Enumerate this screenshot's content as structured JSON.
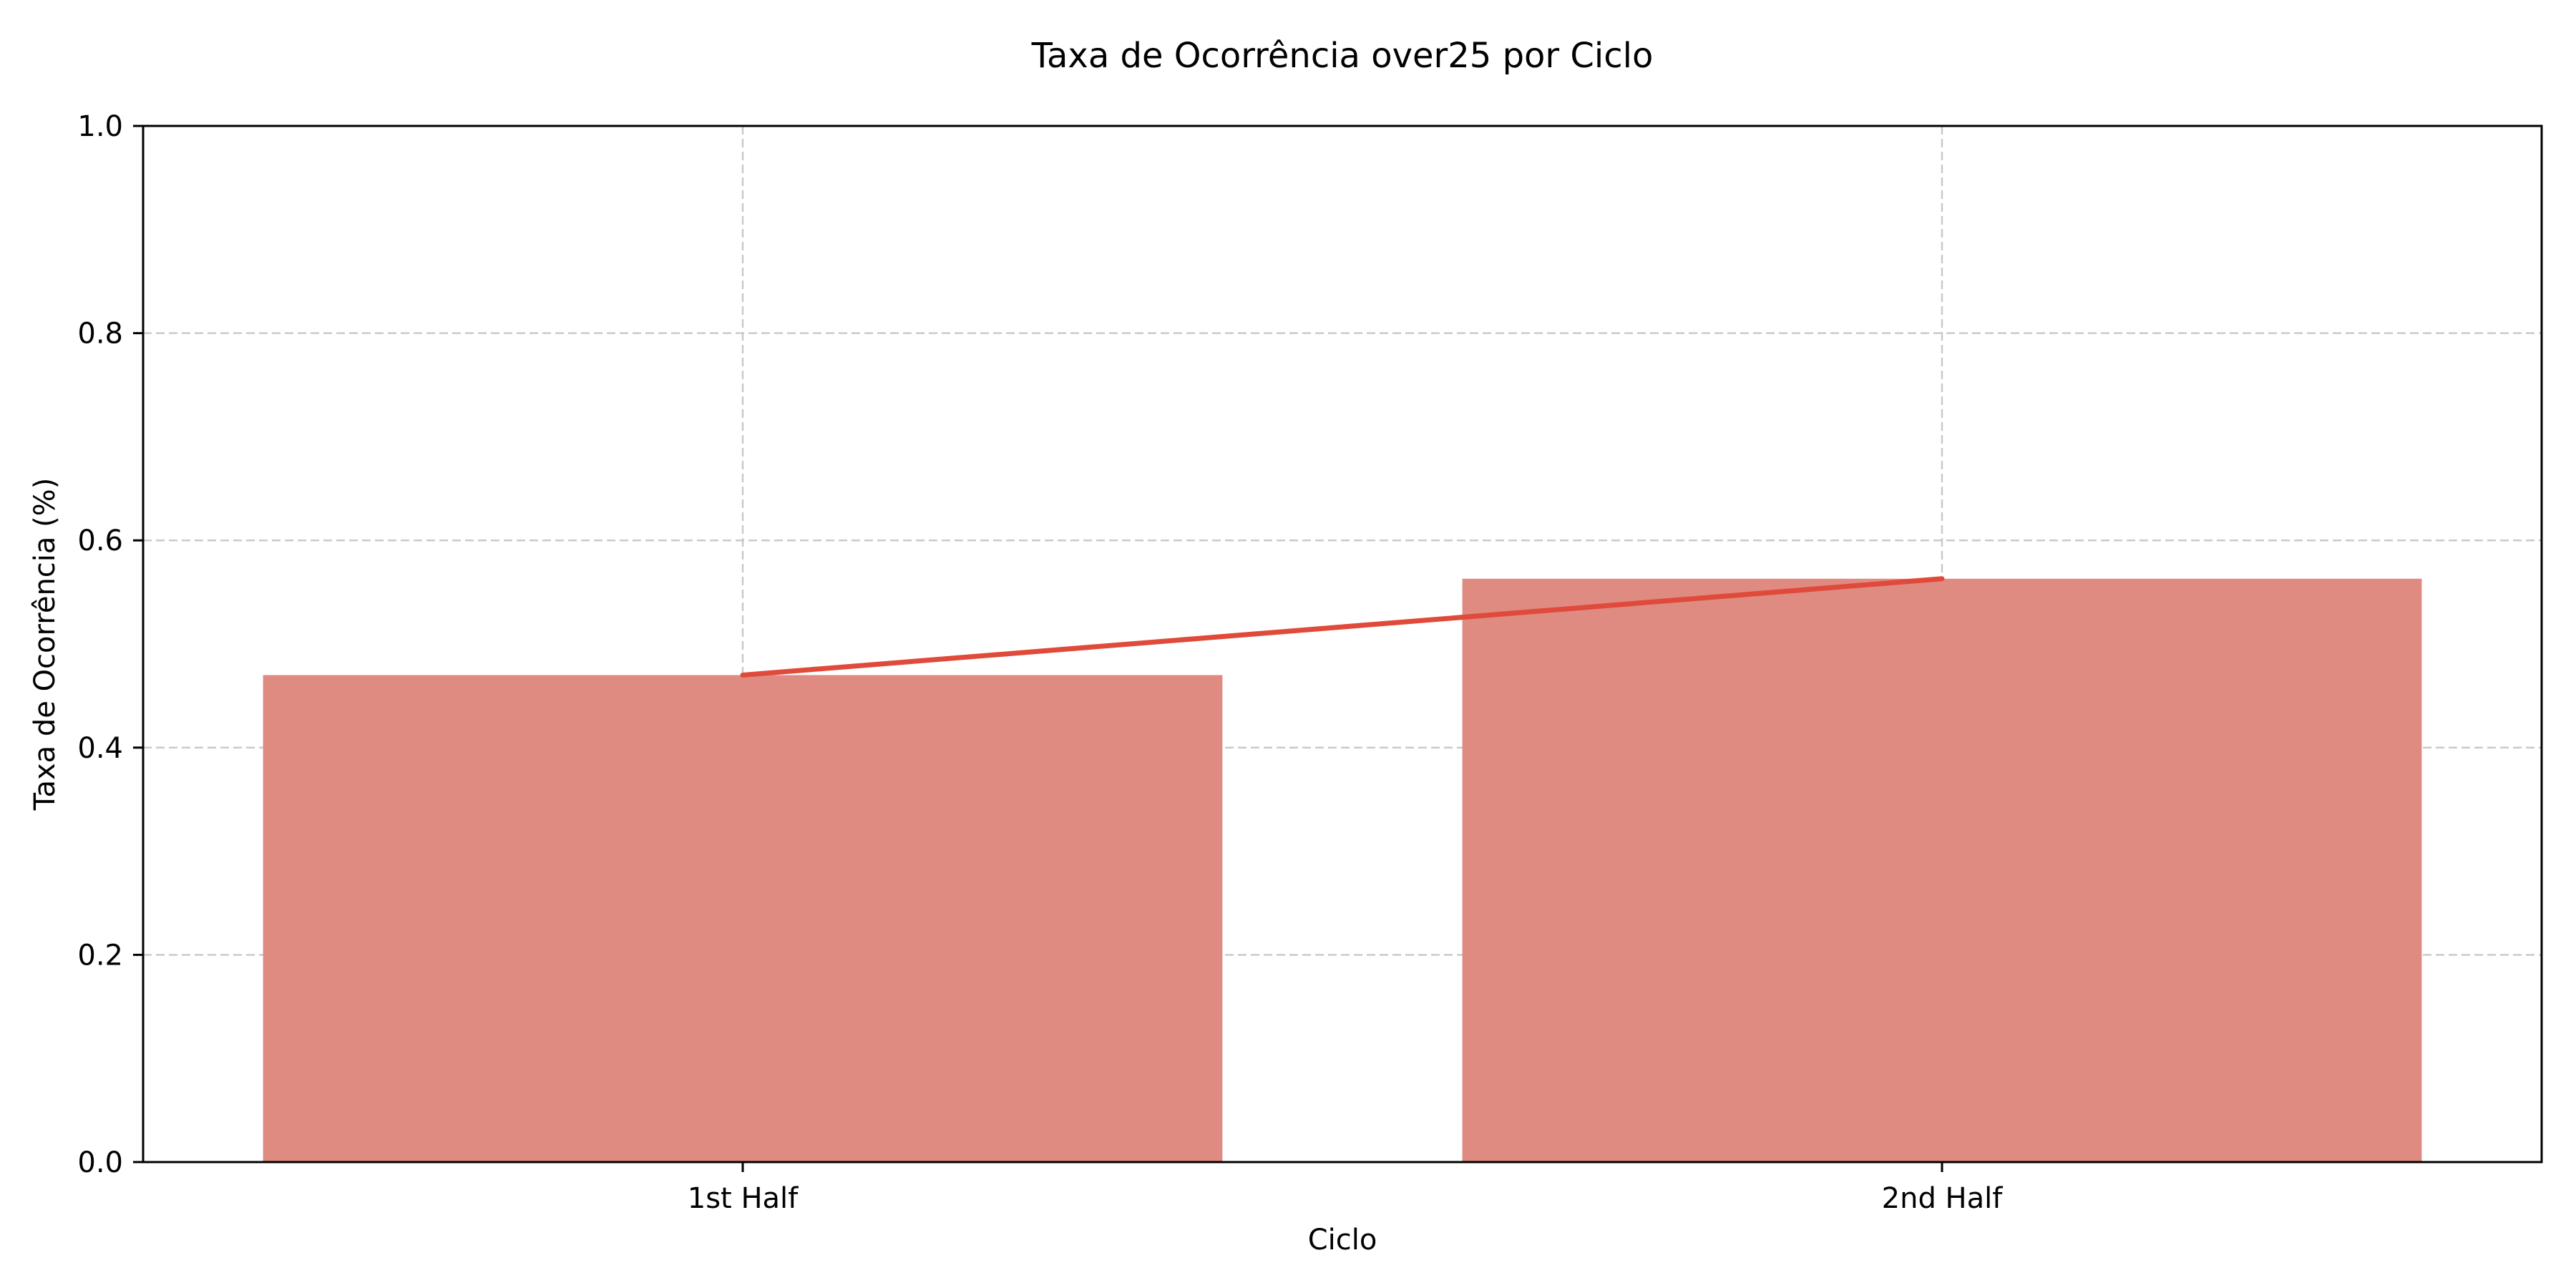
{
  "chart_data": {
    "type": "bar",
    "title": "Taxa de Ocorrência over25 por Ciclo",
    "xlabel": "Ciclo",
    "ylabel": "Taxa de Ocorrência (%)",
    "categories": [
      "1st Half",
      "2nd Half"
    ],
    "series": [
      {
        "type": "bar",
        "values": [
          0.47,
          0.563
        ]
      },
      {
        "type": "line",
        "values": [
          0.47,
          0.563
        ]
      }
    ],
    "ylim": [
      0,
      1.0
    ],
    "yticks": [
      "0.0",
      "0.2",
      "0.4",
      "0.6",
      "0.8",
      "1.0"
    ],
    "grid": true,
    "legend": "none",
    "colors": {
      "bar": "#df8b82",
      "line": "#e04a3a"
    }
  }
}
